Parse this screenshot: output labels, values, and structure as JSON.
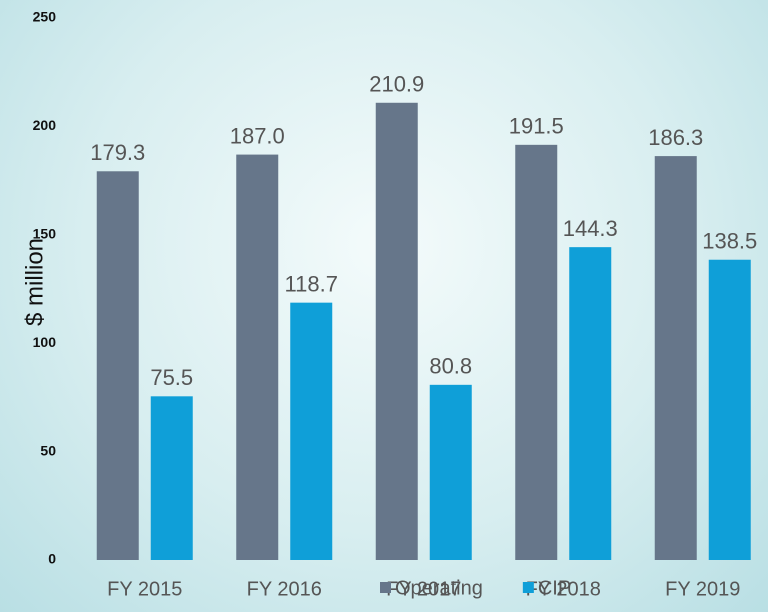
{
  "chart_data": {
    "type": "bar",
    "y_label": "$ million",
    "categories": [
      "FY 2015",
      "FY 2016",
      "FY 2017",
      "FY 2018",
      "FY 2019"
    ],
    "series": [
      {
        "name": "Operating",
        "color": "#66768a",
        "values": [
          179.3,
          187.0,
          210.9,
          191.5,
          186.3
        ],
        "value_labels": [
          "179.3",
          "187.0",
          "210.9",
          "191.5",
          "186.3"
        ]
      },
      {
        "name": "CIP",
        "color": "#0f9fd8",
        "values": [
          75.5,
          118.7,
          80.8,
          144.3,
          138.5
        ],
        "value_labels": [
          "75.5",
          "118.7",
          "80.8",
          "144.3",
          "138.5"
        ]
      }
    ],
    "ylim": [
      0,
      250
    ],
    "yticks": [
      0,
      50,
      100,
      150,
      200,
      250
    ],
    "grid": false,
    "legend": "bottom"
  }
}
